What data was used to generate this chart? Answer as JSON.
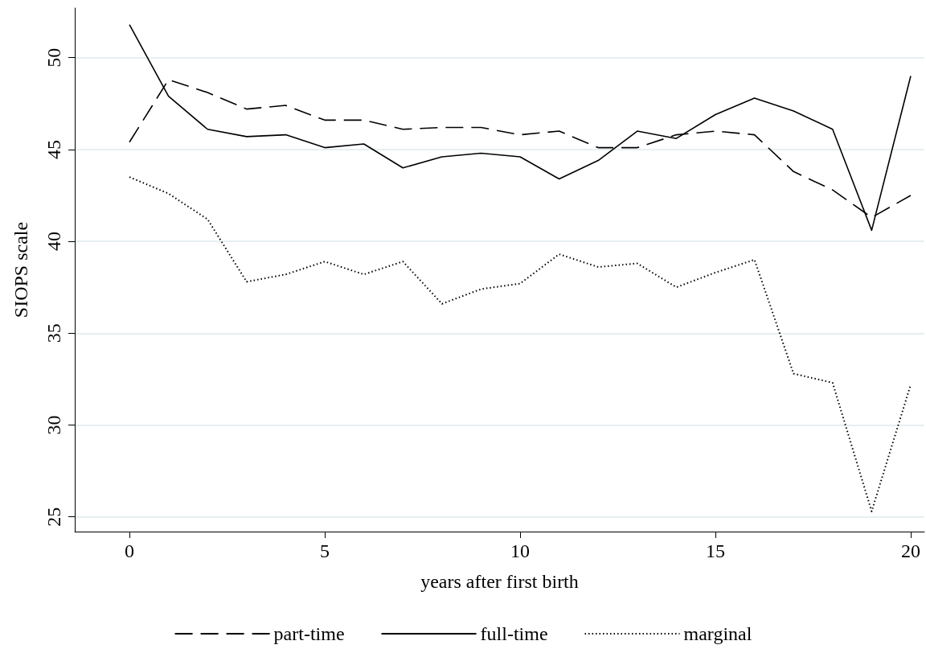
{
  "chart_data": {
    "type": "line",
    "xlabel": "years after first birth",
    "ylabel": "SIOPS scale",
    "x": [
      0,
      1,
      2,
      3,
      4,
      5,
      6,
      7,
      8,
      9,
      10,
      11,
      12,
      13,
      14,
      15,
      16,
      17,
      18,
      19,
      20
    ],
    "series": [
      {
        "name": "part-time",
        "color": "#000000",
        "line_style": "dashed",
        "values": [
          45.4,
          48.8,
          48.1,
          47.2,
          47.4,
          46.6,
          46.6,
          46.1,
          46.2,
          46.2,
          45.8,
          46.0,
          45.1,
          45.1,
          45.8,
          46.0,
          45.8,
          43.8,
          42.8,
          41.3,
          42.5
        ]
      },
      {
        "name": "full-time",
        "color": "#000000",
        "line_style": "solid",
        "values": [
          51.8,
          47.9,
          46.1,
          45.7,
          45.8,
          45.1,
          45.3,
          44.0,
          44.6,
          44.8,
          44.6,
          43.4,
          44.4,
          46.0,
          45.6,
          46.9,
          47.8,
          47.1,
          46.1,
          40.6,
          49.0
        ]
      },
      {
        "name": "marginal",
        "color": "#000000",
        "line_style": "dotted",
        "values": [
          43.5,
          42.6,
          41.2,
          37.8,
          38.2,
          38.9,
          38.2,
          38.9,
          36.6,
          37.4,
          37.7,
          39.3,
          38.6,
          38.8,
          37.5,
          38.3,
          39.0,
          32.8,
          32.3,
          25.3,
          32.2
        ]
      }
    ],
    "xlim": [
      -1.4,
      20.35
    ],
    "xticks": [
      0,
      5,
      10,
      15,
      20
    ],
    "ylim": [
      24.2,
      52.7
    ],
    "yticks": [
      25,
      30,
      35,
      40,
      45,
      50
    ],
    "grid": "y",
    "legend": "bottom",
    "marker": "none"
  }
}
